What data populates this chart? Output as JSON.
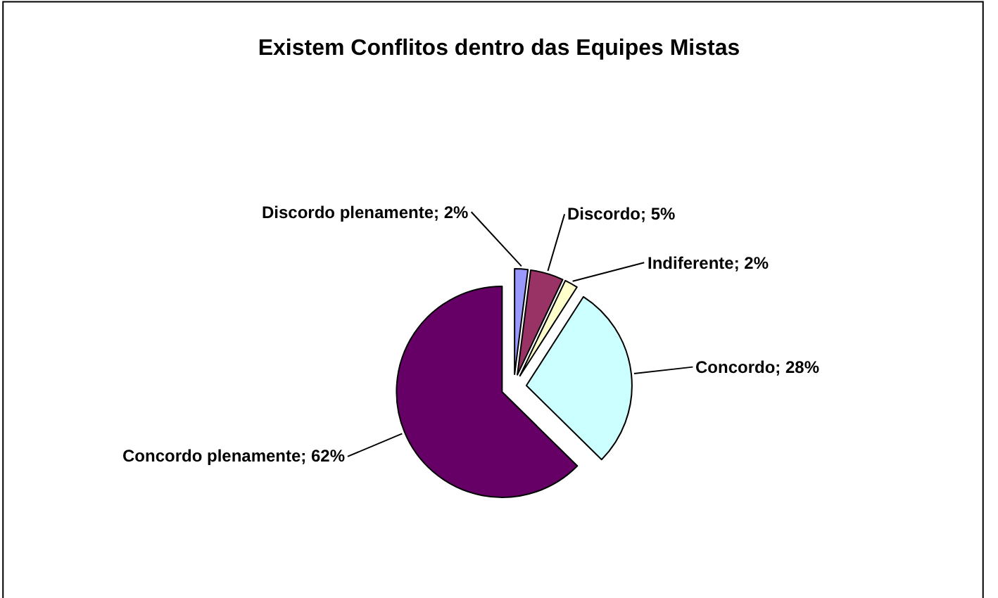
{
  "chart_data": {
    "type": "pie",
    "title": "Existem Conflitos dentro das Equipes Mistas",
    "categories": [
      "Discordo plenamente",
      "Discordo",
      "Indiferente",
      "Concordo",
      "Concordo plenamente"
    ],
    "values": [
      2,
      5,
      2,
      28,
      62
    ],
    "value_labels": [
      "2%",
      "5%",
      "2%",
      "28%",
      "62%"
    ],
    "colors": [
      "#9999ff",
      "#993366",
      "#ffffcc",
      "#ccffff",
      "#660066"
    ],
    "legend": false
  }
}
